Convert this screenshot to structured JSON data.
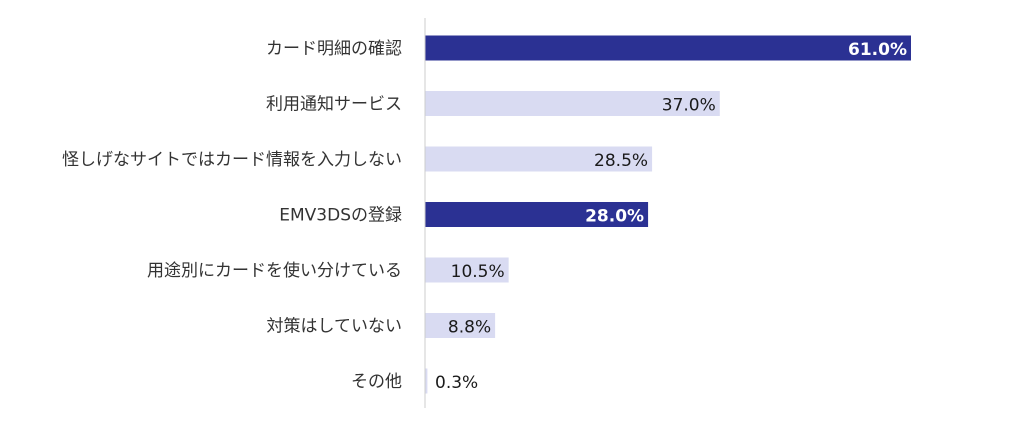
{
  "chart_data": {
    "type": "bar",
    "orientation": "horizontal",
    "title": "",
    "xlabel": "",
    "ylabel": "",
    "xlim": [
      0,
      80
    ],
    "grid": false,
    "legend": "none",
    "categories": [
      "カード明細の確認",
      "利用通知サービス",
      "怪しげなサイトではカード情報を入力しない",
      "EMV3DSの登録",
      "用途別にカードを使い分けている",
      "対策はしていない",
      "その他"
    ],
    "values": [
      61.0,
      37.0,
      28.5,
      28.0,
      10.5,
      8.8,
      0.3
    ],
    "value_labels": [
      "61.0%",
      "37.0%",
      "28.5%",
      "28.0%",
      "10.5%",
      "8.8%",
      "0.3%"
    ],
    "highlighted": [
      true,
      false,
      false,
      true,
      false,
      false,
      false
    ],
    "colors": {
      "highlight_bar": "#2b3193",
      "normal_bar": "#d9dbf2",
      "highlight_label": "#ffffff",
      "normal_label": "#1a1a1a",
      "category_label": "#333333",
      "axis_line": "#cccccc"
    }
  }
}
